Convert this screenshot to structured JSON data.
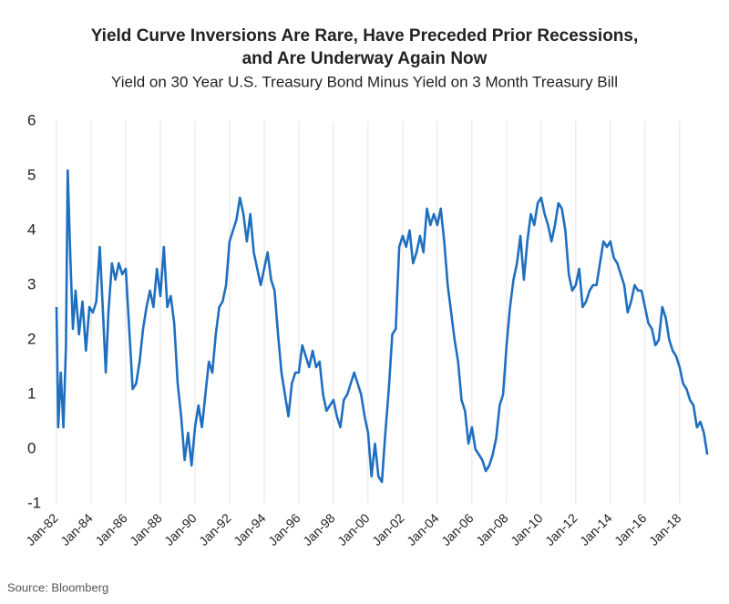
{
  "chart_data": {
    "type": "line",
    "title": [
      "Yield Curve Inversions Are Rare, Have Preceded Prior Recessions,",
      "and Are Underway Again Now"
    ],
    "subtitle": "Yield on 30 Year U.S. Treasury Bond Minus Yield on 3 Month Treasury Bill",
    "source": "Source: Bloomberg",
    "x": [
      1982.0,
      1982.1,
      1982.25,
      1982.4,
      1982.55,
      1982.65,
      1982.8,
      1982.95,
      1983.1,
      1983.3,
      1983.5,
      1983.7,
      1983.9,
      1984.1,
      1984.3,
      1984.5,
      1984.7,
      1984.85,
      1985.0,
      1985.2,
      1985.4,
      1985.6,
      1985.8,
      1986.0,
      1986.2,
      1986.4,
      1986.6,
      1986.8,
      1987.0,
      1987.2,
      1987.4,
      1987.6,
      1987.8,
      1988.0,
      1988.2,
      1988.4,
      1988.6,
      1988.8,
      1989.0,
      1989.2,
      1989.4,
      1989.6,
      1989.8,
      1990.0,
      1990.2,
      1990.4,
      1990.6,
      1990.8,
      1991.0,
      1991.2,
      1991.4,
      1991.6,
      1991.8,
      1992.0,
      1992.2,
      1992.4,
      1992.6,
      1992.8,
      1993.0,
      1993.2,
      1993.4,
      1993.6,
      1993.8,
      1994.0,
      1994.2,
      1994.4,
      1994.6,
      1994.8,
      1995.0,
      1995.2,
      1995.4,
      1995.6,
      1995.8,
      1996.0,
      1996.2,
      1996.4,
      1996.6,
      1996.8,
      1997.0,
      1997.2,
      1997.4,
      1997.6,
      1997.8,
      1998.0,
      1998.2,
      1998.4,
      1998.6,
      1998.8,
      1999.0,
      1999.2,
      1999.4,
      1999.6,
      1999.8,
      2000.0,
      2000.2,
      2000.4,
      2000.6,
      2000.8,
      2001.0,
      2001.2,
      2001.4,
      2001.6,
      2001.8,
      2002.0,
      2002.2,
      2002.4,
      2002.6,
      2002.8,
      2003.0,
      2003.2,
      2003.4,
      2003.6,
      2003.8,
      2004.0,
      2004.2,
      2004.4,
      2004.6,
      2004.8,
      2005.0,
      2005.2,
      2005.4,
      2005.6,
      2005.8,
      2006.0,
      2006.2,
      2006.4,
      2006.6,
      2006.8,
      2007.0,
      2007.2,
      2007.4,
      2007.6,
      2007.8,
      2008.0,
      2008.2,
      2008.4,
      2008.6,
      2008.8,
      2009.0,
      2009.2,
      2009.4,
      2009.6,
      2009.8,
      2010.0,
      2010.2,
      2010.4,
      2010.6,
      2010.8,
      2011.0,
      2011.2,
      2011.4,
      2011.6,
      2011.8,
      2012.0,
      2012.2,
      2012.4,
      2012.6,
      2012.8,
      2013.0,
      2013.2,
      2013.4,
      2013.6,
      2013.8,
      2014.0,
      2014.2,
      2014.4,
      2014.6,
      2014.8,
      2015.0,
      2015.2,
      2015.4,
      2015.6,
      2015.8,
      2016.0,
      2016.2,
      2016.4,
      2016.6,
      2016.8,
      2017.0,
      2017.2,
      2017.4,
      2017.6,
      2017.8,
      2018.0,
      2018.2,
      2018.4,
      2018.6,
      2018.8,
      2019.0,
      2019.2,
      2019.4,
      2019.6
    ],
    "series": [
      {
        "name": "30Y minus 3M",
        "color": "#1f6fc0",
        "values": [
          2.6,
          0.4,
          1.4,
          0.4,
          1.9,
          5.1,
          3.5,
          2.2,
          2.9,
          2.1,
          2.7,
          1.8,
          2.6,
          2.5,
          2.7,
          3.7,
          2.4,
          1.4,
          2.5,
          3.4,
          3.1,
          3.4,
          3.2,
          3.3,
          2.2,
          1.1,
          1.2,
          1.6,
          2.2,
          2.6,
          2.9,
          2.6,
          3.3,
          2.8,
          3.7,
          2.6,
          2.8,
          2.3,
          1.2,
          0.6,
          -0.2,
          0.3,
          -0.3,
          0.4,
          0.8,
          0.4,
          1.0,
          1.6,
          1.4,
          2.1,
          2.6,
          2.7,
          3.0,
          3.8,
          4.0,
          4.2,
          4.6,
          4.3,
          3.8,
          4.3,
          3.6,
          3.3,
          3.0,
          3.3,
          3.6,
          3.1,
          2.9,
          2.1,
          1.4,
          1.0,
          0.6,
          1.2,
          1.4,
          1.4,
          1.9,
          1.7,
          1.5,
          1.8,
          1.5,
          1.6,
          1.0,
          0.7,
          0.8,
          0.9,
          0.6,
          0.4,
          0.9,
          1.0,
          1.2,
          1.4,
          1.2,
          1.0,
          0.6,
          0.3,
          -0.5,
          0.1,
          -0.5,
          -0.6,
          0.3,
          1.1,
          2.1,
          2.2,
          3.7,
          3.9,
          3.7,
          4.0,
          3.4,
          3.6,
          3.9,
          3.6,
          4.4,
          4.1,
          4.3,
          4.1,
          4.4,
          3.8,
          3.0,
          2.5,
          2.0,
          1.6,
          0.9,
          0.7,
          0.1,
          0.4,
          0.0,
          -0.1,
          -0.2,
          -0.4,
          -0.3,
          -0.1,
          0.2,
          0.8,
          1.0,
          1.9,
          2.6,
          3.1,
          3.4,
          3.9,
          3.1,
          3.8,
          4.3,
          4.1,
          4.5,
          4.6,
          4.3,
          4.1,
          3.8,
          4.1,
          4.5,
          4.4,
          4.0,
          3.2,
          2.9,
          3.0,
          3.3,
          2.6,
          2.7,
          2.9,
          3.0,
          3.0,
          3.4,
          3.8,
          3.7,
          3.8,
          3.5,
          3.4,
          3.2,
          3.0,
          2.5,
          2.7,
          3.0,
          2.9,
          2.9,
          2.6,
          2.3,
          2.2,
          1.9,
          2.0,
          2.6,
          2.4,
          2.0,
          1.8,
          1.7,
          1.5,
          1.2,
          1.1,
          0.9,
          0.8,
          0.4,
          0.5,
          0.3,
          -0.1
        ]
      }
    ],
    "xlim": [
      1982,
      2019.8
    ],
    "xticks": [
      {
        "value": 1982,
        "label": "Jan-82"
      },
      {
        "value": 1984,
        "label": "Jan-84"
      },
      {
        "value": 1986,
        "label": "Jan-86"
      },
      {
        "value": 1988,
        "label": "Jan-88"
      },
      {
        "value": 1990,
        "label": "Jan-90"
      },
      {
        "value": 1992,
        "label": "Jan-92"
      },
      {
        "value": 1994,
        "label": "Jan-94"
      },
      {
        "value": 1996,
        "label": "Jan-96"
      },
      {
        "value": 1998,
        "label": "Jan-98"
      },
      {
        "value": 2000,
        "label": "Jan-00"
      },
      {
        "value": 2002,
        "label": "Jan-02"
      },
      {
        "value": 2004,
        "label": "Jan-04"
      },
      {
        "value": 2006,
        "label": "Jan-06"
      },
      {
        "value": 2008,
        "label": "Jan-08"
      },
      {
        "value": 2010,
        "label": "Jan-10"
      },
      {
        "value": 2012,
        "label": "Jan-12"
      },
      {
        "value": 2014,
        "label": "Jan-14"
      },
      {
        "value": 2016,
        "label": "Jan-16"
      },
      {
        "value": 2018,
        "label": "Jan-18"
      }
    ],
    "ylim": [
      -1,
      6
    ],
    "yticks": [
      -1,
      0,
      1,
      2,
      3,
      4,
      5,
      6
    ],
    "grid": "x"
  }
}
